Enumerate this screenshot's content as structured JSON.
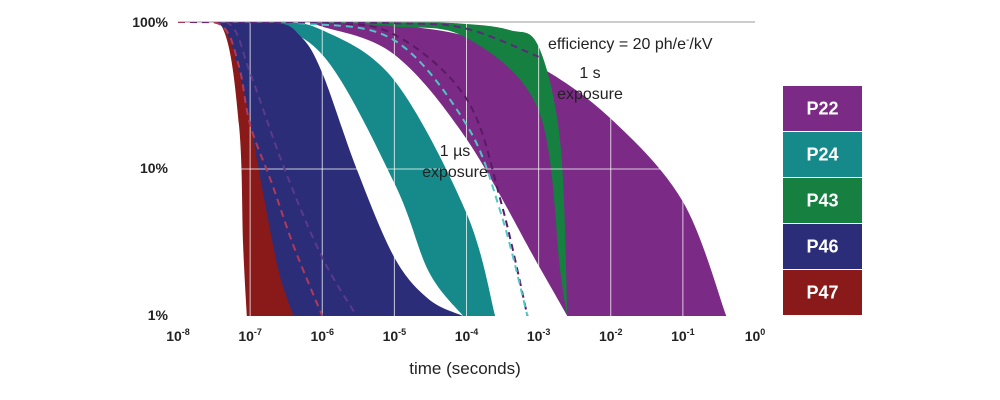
{
  "chart_data": {
    "type": "area",
    "xlabel": "time (seconds)",
    "x_scale": "log",
    "y_scale": "log",
    "xlim": [
      1e-08,
      1
    ],
    "ylim": [
      1,
      100
    ],
    "x_ticks": [
      {
        "base": "10",
        "exp": "-8"
      },
      {
        "base": "10",
        "exp": "-7"
      },
      {
        "base": "10",
        "exp": "-6"
      },
      {
        "base": "10",
        "exp": "-5"
      },
      {
        "base": "10",
        "exp": "-4"
      },
      {
        "base": "10",
        "exp": "-3"
      },
      {
        "base": "10",
        "exp": "-2"
      },
      {
        "base": "10",
        "exp": "-1"
      },
      {
        "base": "10",
        "exp": "0"
      }
    ],
    "y_ticks": [
      {
        "value": 100,
        "label": "100%"
      },
      {
        "value": 10,
        "label": "10%"
      },
      {
        "value": 1,
        "label": "1%"
      }
    ],
    "annotations": {
      "efficiency_prefix": "efficiency = 20 ph/e",
      "efficiency_sup": "-",
      "efficiency_suffix": "/kV",
      "one_s_line1": "1 s",
      "one_s_line2": "exposure",
      "one_us_line1": "1 µs",
      "one_us_line2": "exposure"
    },
    "legend_position": "right",
    "series": [
      {
        "name": "P22",
        "color": "#7b2a86",
        "upper": [
          [
            1e-08,
            100
          ],
          [
            1e-06,
            100
          ],
          [
            1e-05,
            95
          ],
          [
            0.0001,
            80
          ],
          [
            0.001,
            50
          ],
          [
            0.01,
            22
          ],
          [
            0.1,
            6
          ],
          [
            0.4,
            1
          ]
        ],
        "lower": [
          [
            1e-08,
            100
          ],
          [
            4e-07,
            100
          ],
          [
            1e-06,
            93
          ],
          [
            1e-05,
            60
          ],
          [
            0.0001,
            16
          ],
          [
            0.001,
            2.2
          ],
          [
            0.0025,
            1
          ]
        ],
        "dashed": [
          [
            1e-08,
            100
          ],
          [
            1e-06,
            98
          ],
          [
            1e-05,
            82
          ],
          [
            0.0001,
            30
          ],
          [
            0.0003,
            6
          ],
          [
            0.0007,
            1
          ]
        ]
      },
      {
        "name": "P24",
        "color": "#168a8a",
        "upper": [
          [
            1e-08,
            100
          ],
          [
            2e-07,
            100
          ],
          [
            1e-06,
            88
          ],
          [
            1e-05,
            40
          ],
          [
            0.0001,
            5
          ],
          [
            0.00025,
            1
          ]
        ],
        "lower": [
          [
            1e-08,
            100
          ],
          [
            1e-07,
            100
          ],
          [
            1e-06,
            60
          ],
          [
            1e-05,
            8
          ],
          [
            3e-05,
            2
          ],
          [
            9e-05,
            1
          ]
        ],
        "dashed": [
          [
            1e-08,
            100
          ],
          [
            5e-07,
            98
          ],
          [
            1e-05,
            75
          ],
          [
            0.0001,
            20
          ],
          [
            0.0003,
            5
          ],
          [
            0.0007,
            1
          ]
        ]
      },
      {
        "name": "P43",
        "color": "#168040",
        "upper": [
          [
            1e-08,
            100
          ],
          [
            1e-05,
            100
          ],
          [
            0.0001,
            97
          ],
          [
            0.0004,
            88
          ],
          [
            0.001,
            68
          ],
          [
            0.002,
            15
          ],
          [
            0.0025,
            1
          ]
        ],
        "lower": [
          [
            1e-08,
            100
          ],
          [
            1e-06,
            99
          ],
          [
            1e-05,
            93
          ],
          [
            0.0001,
            78
          ],
          [
            0.001,
            25
          ],
          [
            0.002,
            2
          ],
          [
            0.0025,
            1
          ]
        ],
        "dashed": [
          [
            1e-08,
            100
          ],
          [
            1e-05,
            98
          ],
          [
            0.0001,
            90
          ],
          [
            0.001,
            58
          ]
        ]
      },
      {
        "name": "P46",
        "color": "#2b2d78",
        "upper": [
          [
            1e-08,
            100
          ],
          [
            2e-07,
            100
          ],
          [
            5e-07,
            80
          ],
          [
            1e-06,
            45
          ],
          [
            3e-06,
            10
          ],
          [
            1e-05,
            2.5
          ],
          [
            3e-05,
            1.3
          ],
          [
            9e-05,
            1
          ]
        ],
        "lower": [
          [
            1e-08,
            100
          ],
          [
            4e-08,
            94
          ],
          [
            7e-08,
            40
          ],
          [
            1e-07,
            12
          ],
          [
            1.5e-07,
            2.5
          ],
          [
            2.5e-07,
            1
          ]
        ],
        "dashed": [
          [
            1e-08,
            100
          ],
          [
            5e-08,
            98
          ],
          [
            1e-07,
            45
          ],
          [
            3e-07,
            10
          ],
          [
            1e-06,
            2.5
          ],
          [
            3e-06,
            1
          ]
        ]
      },
      {
        "name": "P47",
        "color": "#8a1a1a",
        "upper": [
          [
            1e-08,
            100
          ],
          [
            4e-08,
            94
          ],
          [
            8e-08,
            35
          ],
          [
            1.5e-07,
            7
          ],
          [
            2.5e-07,
            2
          ],
          [
            4e-07,
            1
          ]
        ],
        "lower": [
          [
            1e-08,
            100
          ],
          [
            4e-08,
            94
          ],
          [
            7e-08,
            20
          ],
          [
            8e-08,
            3
          ],
          [
            9e-08,
            1
          ]
        ],
        "dashed": [
          [
            1e-08,
            100
          ],
          [
            4e-08,
            95
          ],
          [
            7e-08,
            50
          ],
          [
            1e-07,
            20
          ],
          [
            2e-07,
            8
          ],
          [
            4e-07,
            3
          ],
          [
            1e-06,
            1
          ]
        ]
      }
    ]
  }
}
